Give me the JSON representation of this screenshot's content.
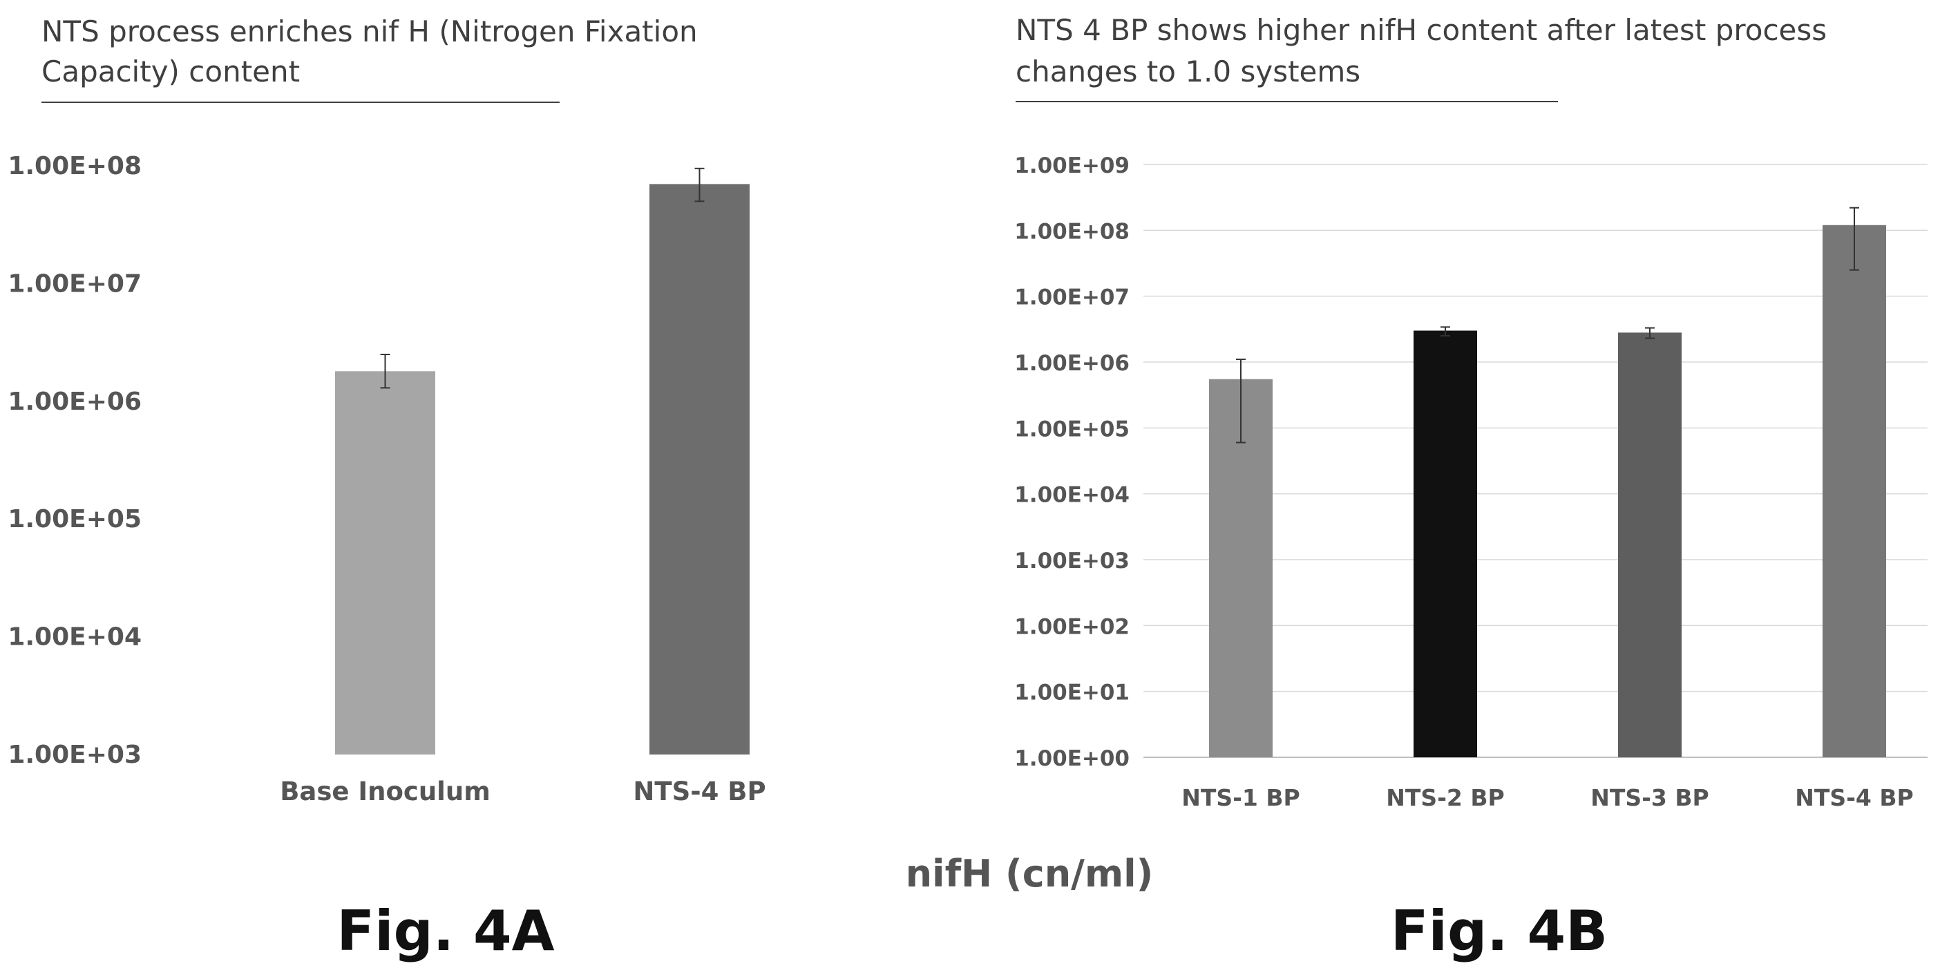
{
  "chart_data": [
    {
      "type": "bar",
      "title_lines": [
        "NTS process enriches nif H (Nitrogen Fixation",
        "Capacity) content"
      ],
      "scale": "log",
      "ylim": [
        1000,
        100000000
      ],
      "ytick_values": [
        1000,
        10000,
        100000,
        1000000,
        10000000,
        100000000
      ],
      "ytick_labels": [
        "1.00E+03",
        "1.00E+04",
        "1.00E+05",
        "1.00E+06",
        "1.00E+07",
        "1.00E+08"
      ],
      "grid": false,
      "categories": [
        "Base Inoculum",
        "NTS-4 BP"
      ],
      "values": [
        1800000,
        70000000
      ],
      "error_low": [
        1300000,
        50000000
      ],
      "error_high": [
        2500000,
        95000000
      ],
      "colors": [
        "#a6a6a6",
        "#6d6d6d"
      ],
      "figure_label": "Fig. 4A"
    },
    {
      "type": "bar",
      "title_lines": [
        "NTS 4 BP shows higher nifH content after latest process",
        "changes to 1.0 systems"
      ],
      "scale": "log",
      "ylim": [
        1,
        1000000000
      ],
      "ytick_values": [
        1,
        10,
        100,
        1000,
        10000,
        100000,
        1000000,
        10000000,
        100000000,
        1000000000
      ],
      "ytick_labels": [
        "1.00E+00",
        "1.00E+01",
        "1.00E+02",
        "1.00E+03",
        "1.00E+04",
        "1.00E+05",
        "1.00E+06",
        "1.00E+07",
        "1.00E+08",
        "1.00E+09"
      ],
      "grid": true,
      "categories": [
        "NTS-1 BP",
        "NTS-2 BP",
        "NTS-3 BP",
        "NTS-4 BP"
      ],
      "values": [
        550000,
        3000000,
        2800000,
        120000000
      ],
      "error_low": [
        60000,
        2500000,
        2300000,
        25000000
      ],
      "error_high": [
        1100000,
        3400000,
        3300000,
        220000000
      ],
      "colors": [
        "#8c8c8c",
        "#111111",
        "#5e5e5e",
        "#777777"
      ],
      "units_label": "nifH (cn/ml)",
      "figure_label": "Fig. 4B"
    }
  ]
}
